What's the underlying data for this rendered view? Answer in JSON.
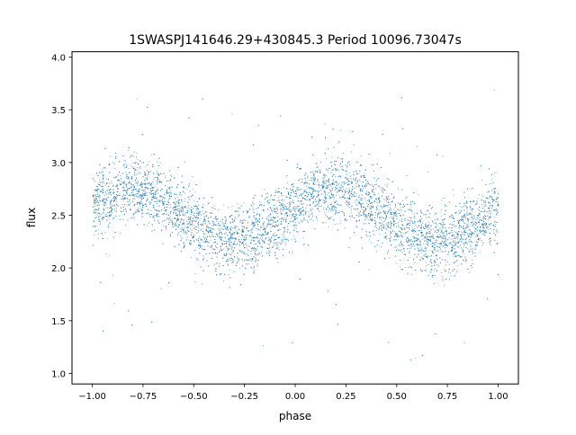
{
  "chart_data": {
    "type": "scatter",
    "title": "1SWASPJ141646.29+430845.3 Period 10096.73047s",
    "xlabel": "phase",
    "ylabel": "flux",
    "xlim": [
      -1.1,
      1.1
    ],
    "ylim": [
      0.9,
      4.05
    ],
    "xticks": [
      -1.0,
      -0.75,
      -0.5,
      -0.25,
      0.0,
      0.25,
      0.5,
      0.75,
      1.0
    ],
    "xtick_labels": [
      "−1.00",
      "−0.75",
      "−0.50",
      "−0.25",
      "0.00",
      "0.25",
      "0.50",
      "0.75",
      "1.00"
    ],
    "yticks": [
      1.0,
      1.5,
      2.0,
      2.5,
      3.0,
      3.5,
      4.0
    ],
    "ytick_labels": [
      "1.0",
      "1.5",
      "2.0",
      "2.5",
      "3.0",
      "3.5",
      "4.0"
    ],
    "grid": false,
    "marker_color": "#1f77b4",
    "series": [
      {
        "phase_range": [
          -1.0,
          1.0
        ],
        "model": "sinusoidal light curve repeated twice over phase",
        "mean_flux": 2.5,
        "amplitude": 0.25,
        "peak_phases": [
          -0.8,
          0.2
        ],
        "trough_phases": [
          -0.3,
          0.7
        ],
        "scatter_sigma": 0.16,
        "n_points": 9000,
        "outlier_range": [
          1.1,
          3.8
        ]
      }
    ]
  }
}
